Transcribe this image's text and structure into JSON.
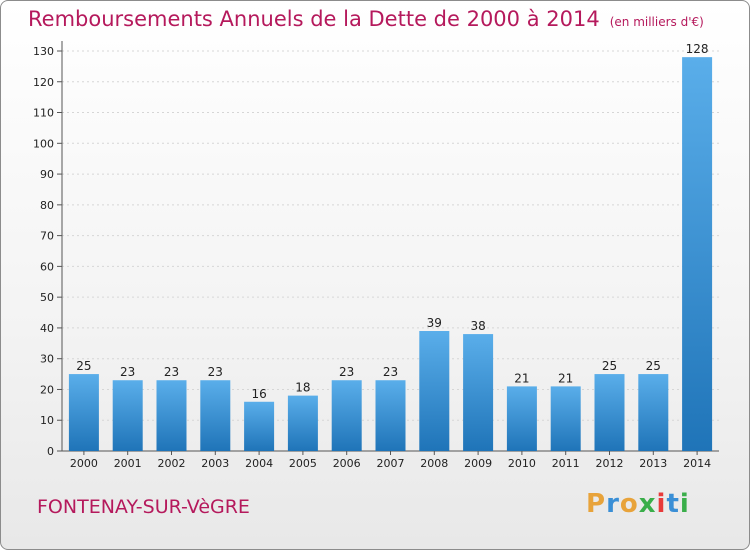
{
  "title": "Remboursements Annuels de la Dette de 2000 à 2014",
  "unit": "(en milliers d'€)",
  "town": "FONTENAY-SUR-VèGRE",
  "logo": {
    "letters": [
      "P",
      "r",
      "o",
      "x",
      "i",
      "t",
      "i"
    ],
    "colors": [
      "#e8a33a",
      "#3a8fd6",
      "#e8a33a",
      "#3aae4a",
      "#e83a3a",
      "#3a8fd6",
      "#3aae4a"
    ]
  },
  "colors": {
    "title": "#b5195c",
    "bar_top": "#5aaeea",
    "bar_bottom": "#1f74b8"
  },
  "chart_data": {
    "type": "bar",
    "title": "Remboursements Annuels de la Dette de 2000 à 2014",
    "xlabel": "",
    "ylabel": "",
    "ylim": [
      0,
      130
    ],
    "yticks": [
      0,
      10,
      20,
      30,
      40,
      50,
      60,
      70,
      80,
      90,
      100,
      110,
      120,
      130
    ],
    "grid": true,
    "categories": [
      "2000",
      "2001",
      "2002",
      "2003",
      "2004",
      "2005",
      "2006",
      "2007",
      "2008",
      "2009",
      "2010",
      "2011",
      "2012",
      "2013",
      "2014"
    ],
    "values": [
      25,
      23,
      23,
      23,
      16,
      18,
      23,
      23,
      39,
      38,
      21,
      21,
      25,
      25,
      128
    ]
  }
}
